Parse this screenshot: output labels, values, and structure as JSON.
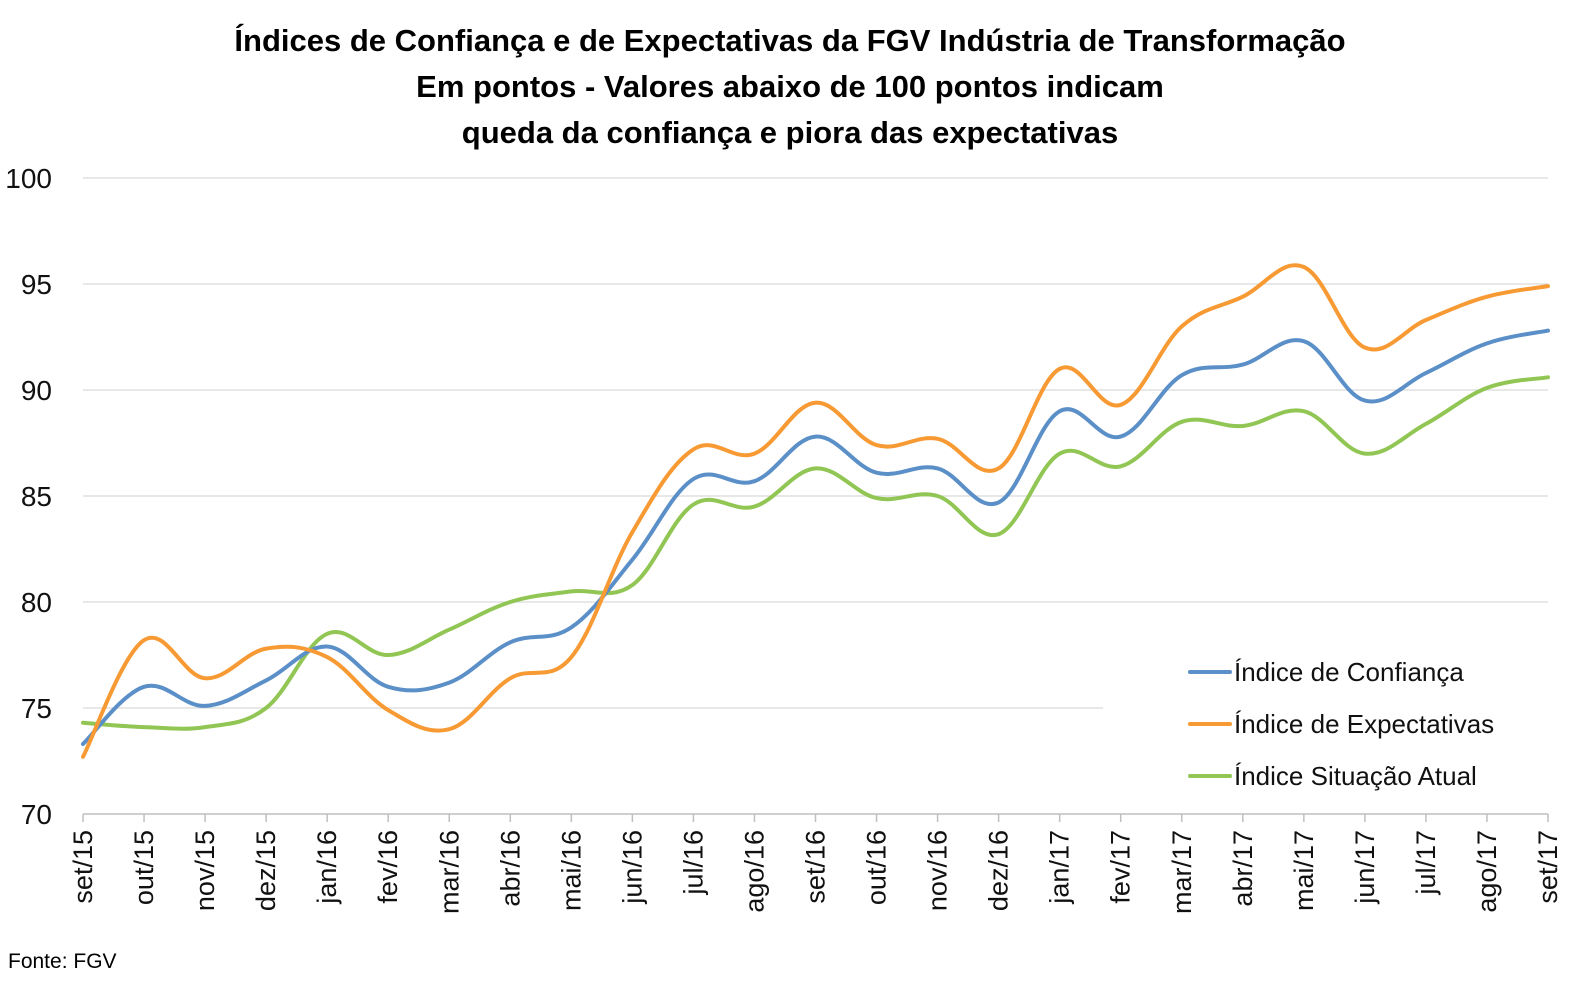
{
  "chart_data": {
    "type": "line",
    "title": [
      "Índices de Confiança e de Expectativas da FGV Indústria de Transformação",
      "Em pontos - Valores abaixo de 100 pontos indicam",
      "queda da confiança e piora das expectativas"
    ],
    "categories": [
      "set/15",
      "out/15",
      "nov/15",
      "dez/15",
      "jan/16",
      "fev/16",
      "mar/16",
      "abr/16",
      "mai/16",
      "jun/16",
      "jul/16",
      "ago/16",
      "set/16",
      "out/16",
      "nov/16",
      "dez/16",
      "jan/17",
      "fev/17",
      "mar/17",
      "abr/17",
      "mai/17",
      "jun/17",
      "jul/17",
      "ago/17",
      "set/17"
    ],
    "ylim": [
      70,
      100
    ],
    "yticks": [
      70,
      75,
      80,
      85,
      90,
      95,
      100
    ],
    "grid": true,
    "legend_position": "right",
    "series": [
      {
        "name": "Índice de Confiança",
        "color": "#5b8fc8",
        "values": [
          73.3,
          76.0,
          75.1,
          76.3,
          77.9,
          76.0,
          76.2,
          78.1,
          78.8,
          82.0,
          85.8,
          85.7,
          87.8,
          86.1,
          86.3,
          84.7,
          89.0,
          87.8,
          90.7,
          91.2,
          92.3,
          89.5,
          90.8,
          92.2,
          92.8
        ]
      },
      {
        "name": "Índice de Expectativas",
        "color": "#f79a34",
        "values": [
          72.7,
          78.2,
          76.4,
          77.8,
          77.4,
          74.9,
          74.0,
          76.4,
          77.4,
          83.3,
          87.2,
          87.0,
          89.4,
          87.4,
          87.7,
          86.3,
          91.0,
          89.3,
          93.0,
          94.4,
          95.8,
          92.0,
          93.3,
          94.4,
          94.9
        ]
      },
      {
        "name": "Índice Situação Atual",
        "color": "#91c654",
        "values": [
          74.3,
          74.1,
          74.1,
          75.0,
          78.5,
          77.5,
          78.7,
          80.0,
          80.5,
          80.8,
          84.6,
          84.5,
          86.3,
          84.9,
          85.0,
          83.2,
          87.0,
          86.4,
          88.5,
          88.3,
          89.0,
          87.0,
          88.4,
          90.1,
          90.6
        ]
      }
    ]
  },
  "source": "Fonte: FGV"
}
